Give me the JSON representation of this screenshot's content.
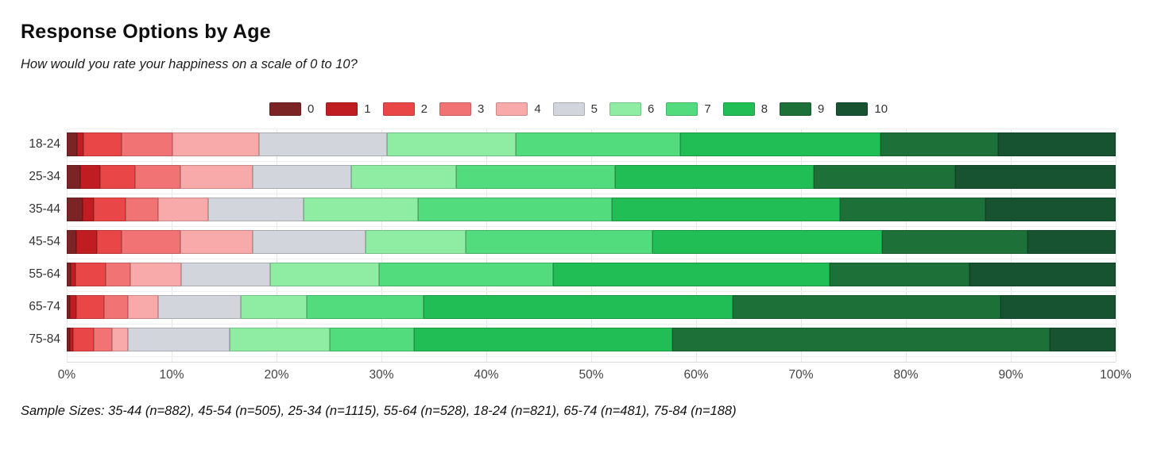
{
  "header": {
    "title": "Response Options by Age",
    "subtitle": "How would you rate your happiness on a scale of 0 to 10?"
  },
  "footer": {
    "sample_sizes": "Sample Sizes: 35-44 (n=882), 45-54 (n=505), 25-34 (n=1115), 55-64 (n=528), 18-24 (n=821), 65-74 (n=481), 75-84 (n=188)"
  },
  "chart_data": {
    "type": "bar",
    "orientation": "horizontal",
    "stacked": true,
    "units": "percent",
    "title": "Response Options by Age",
    "subtitle": "How would you rate your happiness on a scale of 0 to 10?",
    "legend_position": "top",
    "grid": true,
    "xlim": [
      0,
      100
    ],
    "x_ticks": [
      "0%",
      "10%",
      "20%",
      "30%",
      "40%",
      "50%",
      "60%",
      "70%",
      "80%",
      "90%",
      "100%"
    ],
    "categories": [
      "18-24",
      "25-34",
      "35-44",
      "45-54",
      "55-64",
      "65-74",
      "75-84"
    ],
    "sample_sizes": {
      "18-24": 821,
      "25-34": 1115,
      "35-44": 882,
      "45-54": 505,
      "55-64": 528,
      "65-74": 481,
      "75-84": 188
    },
    "series": [
      {
        "name": "0",
        "color": "#7b2425",
        "values": [
          1.0,
          1.3,
          1.5,
          0.9,
          0.4,
          0.3,
          0.3
        ]
      },
      {
        "name": "1",
        "color": "#c01d22",
        "values": [
          0.6,
          1.9,
          1.1,
          2.0,
          0.4,
          0.6,
          0.3
        ]
      },
      {
        "name": "2",
        "color": "#e94747",
        "values": [
          3.6,
          3.3,
          3.0,
          2.3,
          2.9,
          2.7,
          2.0
        ]
      },
      {
        "name": "3",
        "color": "#f17373",
        "values": [
          4.9,
          4.3,
          3.1,
          5.6,
          2.4,
          2.2,
          1.7
        ]
      },
      {
        "name": "4",
        "color": "#f8a9a9",
        "values": [
          8.2,
          6.9,
          4.8,
          6.9,
          4.8,
          2.9,
          1.5
        ]
      },
      {
        "name": "5",
        "color": "#d3d5dd",
        "values": [
          12.2,
          9.4,
          9.1,
          10.8,
          8.5,
          7.9,
          9.7
        ]
      },
      {
        "name": "6",
        "color": "#8feda3",
        "values": [
          12.3,
          10.0,
          10.9,
          9.5,
          10.4,
          6.3,
          9.6
        ]
      },
      {
        "name": "7",
        "color": "#53dc7e",
        "values": [
          15.7,
          15.2,
          18.5,
          17.8,
          16.6,
          11.1,
          8.0
        ]
      },
      {
        "name": "8",
        "color": "#21bd55",
        "values": [
          19.1,
          18.9,
          21.7,
          21.9,
          26.3,
          29.5,
          24.6
        ]
      },
      {
        "name": "9",
        "color": "#1e7039",
        "values": [
          11.2,
          13.5,
          13.9,
          13.9,
          13.4,
          25.5,
          36.0
        ]
      },
      {
        "name": "10",
        "color": "#175330",
        "values": [
          11.2,
          15.3,
          12.4,
          8.4,
          13.9,
          11.0,
          6.3
        ]
      }
    ]
  }
}
